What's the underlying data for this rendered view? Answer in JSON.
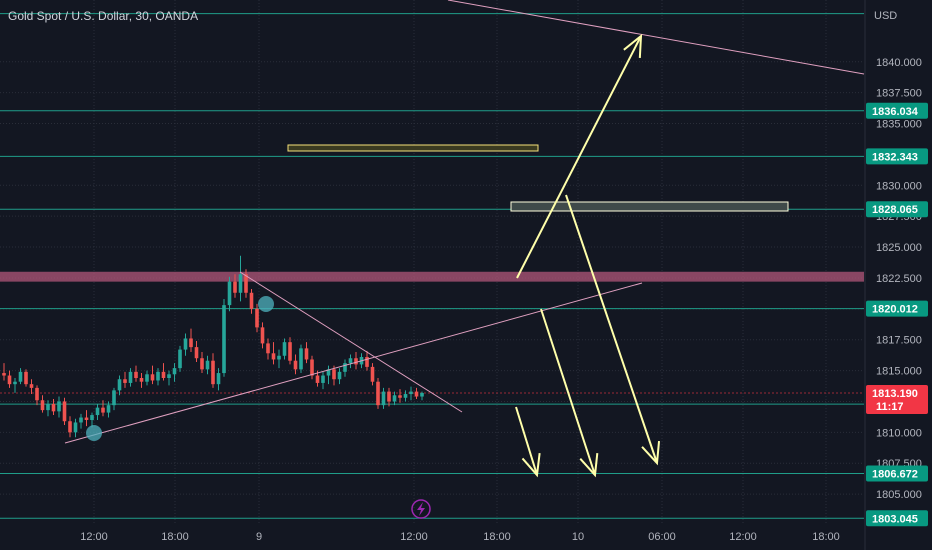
{
  "title": "Gold Spot / U.S. Dollar, 30, OANDA",
  "currency": "USD",
  "colors": {
    "background": "#131722",
    "up": "#26a69a",
    "down": "#ef5350",
    "level": "#1f9d89",
    "badge": "#089981",
    "price_badge": "#f23645",
    "trend": "#e0a0c0",
    "arrow": "#ffffaa",
    "resistance_zone": "#b2577a",
    "lightning": "#9c27b0"
  },
  "lightning_icon": "lightning-icon",
  "chart_data": {
    "type": "candlestick",
    "ylim": [
      1802.5,
      1845
    ],
    "y_ticks": [
      "1805.000",
      "1807.500",
      "1810.000",
      "1812.500",
      "1815.000",
      "1817.500",
      "1820.000",
      "1822.500",
      "1825.000",
      "1827.500",
      "1830.000",
      "1835.000",
      "1837.500",
      "1840.000"
    ],
    "x_ticks": [
      "12:00",
      "18:00",
      "9",
      "12:00",
      "18:00",
      "10",
      "06:00",
      "12:00",
      "18:00"
    ],
    "levels": [
      {
        "value": "1836.034",
        "price": 1836.034
      },
      {
        "value": "1832.343",
        "price": 1832.343
      },
      {
        "value": "1828.065",
        "price": 1828.065
      },
      {
        "value": "1820.012",
        "price": 1820.012
      },
      {
        "value": "1812.287",
        "price": 1812.287
      },
      {
        "value": "1806.672",
        "price": 1806.672
      },
      {
        "value": "1803.045",
        "price": 1803.045
      }
    ],
    "top_level": 1843.9,
    "current_price": {
      "value": "1813.190",
      "price": 1813.19,
      "countdown": "11:17"
    },
    "resistance_zone": [
      1822.2,
      1823.0
    ],
    "candles": [
      [
        1814.8,
        1815.6,
        1814.2,
        1814.6
      ],
      [
        1814.6,
        1815.0,
        1813.6,
        1813.9
      ],
      [
        1813.9,
        1814.4,
        1813.2,
        1814.1
      ],
      [
        1814.1,
        1815.2,
        1813.9,
        1814.9
      ],
      [
        1814.9,
        1815.1,
        1813.7,
        1813.9
      ],
      [
        1813.9,
        1814.3,
        1813.1,
        1813.6
      ],
      [
        1813.6,
        1813.8,
        1812.2,
        1812.6
      ],
      [
        1812.6,
        1813.0,
        1811.6,
        1811.8
      ],
      [
        1811.8,
        1812.6,
        1811.3,
        1812.3
      ],
      [
        1812.3,
        1812.7,
        1811.4,
        1811.7
      ],
      [
        1811.7,
        1812.9,
        1811.2,
        1812.5
      ],
      [
        1812.5,
        1812.8,
        1810.6,
        1810.9
      ],
      [
        1810.9,
        1811.3,
        1809.6,
        1810.0
      ],
      [
        1810.0,
        1811.1,
        1809.6,
        1810.8
      ],
      [
        1810.8,
        1811.5,
        1810.3,
        1811.2
      ],
      [
        1811.2,
        1811.8,
        1810.5,
        1811.0
      ],
      [
        1811.0,
        1811.6,
        1810.4,
        1811.4
      ],
      [
        1811.4,
        1812.3,
        1811.0,
        1812.0
      ],
      [
        1812.0,
        1812.6,
        1811.3,
        1811.6
      ],
      [
        1811.6,
        1812.5,
        1811.2,
        1812.2
      ],
      [
        1812.2,
        1813.6,
        1811.8,
        1813.4
      ],
      [
        1813.4,
        1814.6,
        1813.0,
        1814.3
      ],
      [
        1814.3,
        1814.9,
        1813.6,
        1814.0
      ],
      [
        1814.0,
        1815.2,
        1813.7,
        1814.9
      ],
      [
        1814.9,
        1815.4,
        1814.1,
        1814.4
      ],
      [
        1814.4,
        1814.8,
        1813.6,
        1814.1
      ],
      [
        1814.1,
        1815.0,
        1813.8,
        1814.7
      ],
      [
        1814.7,
        1815.4,
        1813.9,
        1814.2
      ],
      [
        1814.2,
        1815.2,
        1813.8,
        1814.9
      ],
      [
        1814.9,
        1815.6,
        1814.2,
        1814.4
      ],
      [
        1814.4,
        1815.0,
        1813.8,
        1814.7
      ],
      [
        1814.7,
        1815.6,
        1814.1,
        1815.2
      ],
      [
        1815.2,
        1817.0,
        1814.9,
        1816.7
      ],
      [
        1816.7,
        1818.0,
        1816.2,
        1817.6
      ],
      [
        1817.6,
        1818.4,
        1816.5,
        1816.9
      ],
      [
        1816.9,
        1817.4,
        1815.7,
        1816.0
      ],
      [
        1816.0,
        1816.5,
        1814.8,
        1815.1
      ],
      [
        1815.1,
        1816.2,
        1814.7,
        1815.8
      ],
      [
        1815.8,
        1816.4,
        1813.6,
        1813.9
      ],
      [
        1813.9,
        1815.2,
        1813.4,
        1814.8
      ],
      [
        1814.8,
        1820.8,
        1814.5,
        1820.3
      ],
      [
        1820.3,
        1822.6,
        1819.8,
        1822.2
      ],
      [
        1822.2,
        1822.8,
        1820.9,
        1821.3
      ],
      [
        1821.3,
        1824.3,
        1820.6,
        1822.8
      ],
      [
        1822.8,
        1823.2,
        1820.9,
        1821.3
      ],
      [
        1821.3,
        1821.6,
        1819.6,
        1820.0
      ],
      [
        1820.0,
        1820.4,
        1818.1,
        1818.5
      ],
      [
        1818.5,
        1818.9,
        1816.8,
        1817.2
      ],
      [
        1817.2,
        1817.6,
        1815.9,
        1816.4
      ],
      [
        1816.4,
        1817.3,
        1815.5,
        1815.9
      ],
      [
        1815.9,
        1816.7,
        1815.2,
        1816.2
      ],
      [
        1816.2,
        1817.6,
        1815.9,
        1817.3
      ],
      [
        1817.3,
        1817.7,
        1815.5,
        1815.8
      ],
      [
        1815.8,
        1816.3,
        1814.7,
        1815.1
      ],
      [
        1815.1,
        1817.1,
        1814.8,
        1816.8
      ],
      [
        1816.8,
        1817.3,
        1815.6,
        1815.9
      ],
      [
        1815.9,
        1816.2,
        1814.3,
        1814.6
      ],
      [
        1814.6,
        1815.0,
        1813.7,
        1814.0
      ],
      [
        1814.0,
        1814.9,
        1813.5,
        1814.6
      ],
      [
        1814.6,
        1815.4,
        1813.9,
        1815.1
      ],
      [
        1815.1,
        1815.4,
        1813.8,
        1814.3
      ],
      [
        1814.3,
        1815.2,
        1813.9,
        1814.9
      ],
      [
        1814.9,
        1815.9,
        1814.5,
        1815.6
      ],
      [
        1815.6,
        1816.3,
        1815.2,
        1816.0
      ],
      [
        1816.0,
        1816.5,
        1815.1,
        1815.5
      ],
      [
        1815.5,
        1816.4,
        1815.2,
        1816.1
      ],
      [
        1816.1,
        1816.6,
        1815.0,
        1815.3
      ],
      [
        1815.3,
        1815.6,
        1813.8,
        1814.1
      ],
      [
        1814.1,
        1814.4,
        1811.9,
        1812.2
      ],
      [
        1812.2,
        1813.6,
        1811.9,
        1813.3
      ],
      [
        1813.3,
        1813.6,
        1812.1,
        1812.5
      ],
      [
        1812.5,
        1813.3,
        1812.2,
        1813.0
      ],
      [
        1813.0,
        1813.5,
        1812.4,
        1812.8
      ],
      [
        1812.8,
        1813.4,
        1812.5,
        1813.1
      ],
      [
        1813.1,
        1813.7,
        1812.6,
        1813.3
      ],
      [
        1813.3,
        1813.6,
        1812.7,
        1812.9
      ],
      [
        1812.9,
        1813.3,
        1812.6,
        1813.19
      ]
    ]
  }
}
